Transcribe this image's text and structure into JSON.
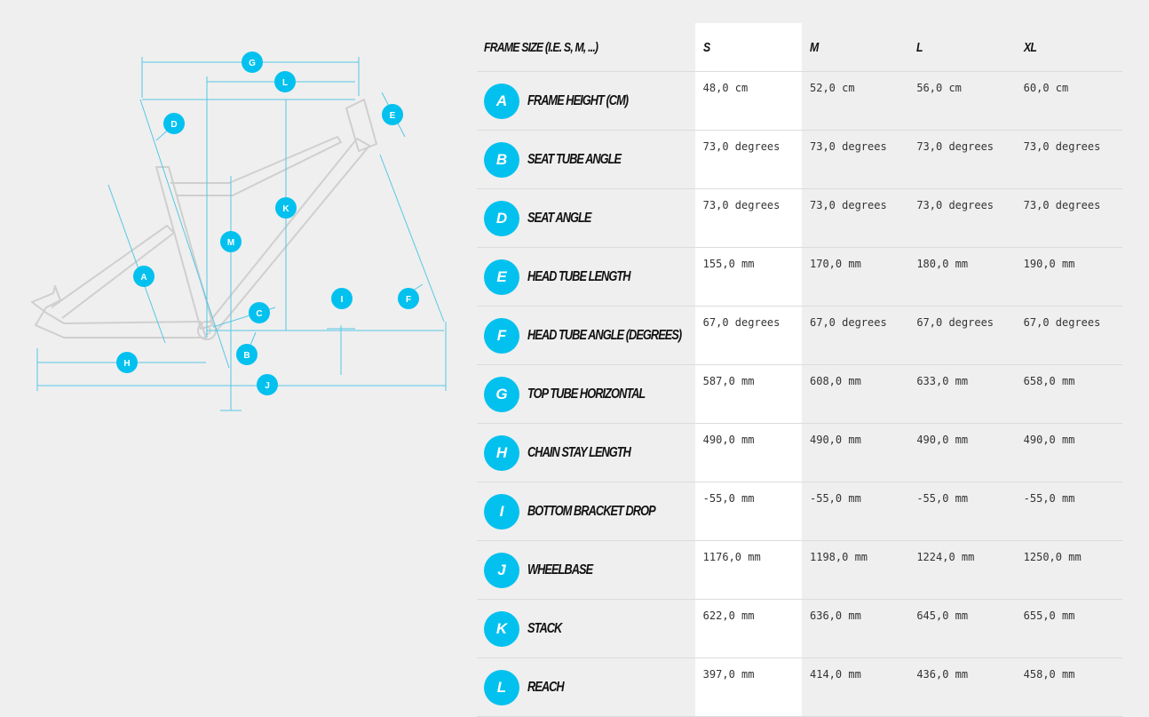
{
  "header": {
    "frame_size_label": "FRAME SIZE (I.E. S, M, ...)",
    "sizes": [
      "S",
      "M",
      "L",
      "XL"
    ],
    "selected_size": "S"
  },
  "rows": [
    {
      "code": "A",
      "name": "FRAME HEIGHT (CM)",
      "values": [
        "48,0 cm",
        "52,0 cm",
        "56,0 cm",
        "60,0 cm"
      ]
    },
    {
      "code": "B",
      "name": "SEAT TUBE ANGLE",
      "values": [
        "73,0 degrees",
        "73,0 degrees",
        "73,0 degrees",
        "73,0 degrees"
      ]
    },
    {
      "code": "D",
      "name": "SEAT ANGLE",
      "values": [
        "73,0 degrees",
        "73,0 degrees",
        "73,0 degrees",
        "73,0 degrees"
      ]
    },
    {
      "code": "E",
      "name": "HEAD TUBE LENGTH",
      "values": [
        "155,0 mm",
        "170,0 mm",
        "180,0 mm",
        "190,0 mm"
      ]
    },
    {
      "code": "F",
      "name": "HEAD TUBE ANGLE (DEGREES)",
      "values": [
        "67,0 degrees",
        "67,0 degrees",
        "67,0 degrees",
        "67,0 degrees"
      ]
    },
    {
      "code": "G",
      "name": "TOP TUBE HORIZONTAL",
      "values": [
        "587,0 mm",
        "608,0 mm",
        "633,0 mm",
        "658,0 mm"
      ]
    },
    {
      "code": "H",
      "name": "CHAIN STAY LENGTH",
      "values": [
        "490,0 mm",
        "490,0 mm",
        "490,0 mm",
        "490,0 mm"
      ]
    },
    {
      "code": "I",
      "name": "BOTTOM BRACKET DROP",
      "values": [
        "-55,0 mm",
        "-55,0 mm",
        "-55,0 mm",
        "-55,0 mm"
      ]
    },
    {
      "code": "J",
      "name": "WHEELBASE",
      "values": [
        "1176,0 mm",
        "1198,0 mm",
        "1224,0 mm",
        "1250,0 mm"
      ]
    },
    {
      "code": "K",
      "name": "STACK",
      "values": [
        "622,0 mm",
        "636,0 mm",
        "645,0 mm",
        "655,0 mm"
      ]
    },
    {
      "code": "L",
      "name": "REACH",
      "values": [
        "397,0 mm",
        "414,0 mm",
        "436,0 mm",
        "458,0 mm"
      ]
    }
  ],
  "diagram": {
    "labels": [
      "G",
      "L",
      "D",
      "E",
      "K",
      "M",
      "A",
      "C",
      "I",
      "F",
      "B",
      "H",
      "J"
    ]
  },
  "colors": {
    "accent": "#03c1ef",
    "background": "#efefef",
    "selected_column": "#ffffff",
    "frame_outline": "#cfcfcf"
  }
}
